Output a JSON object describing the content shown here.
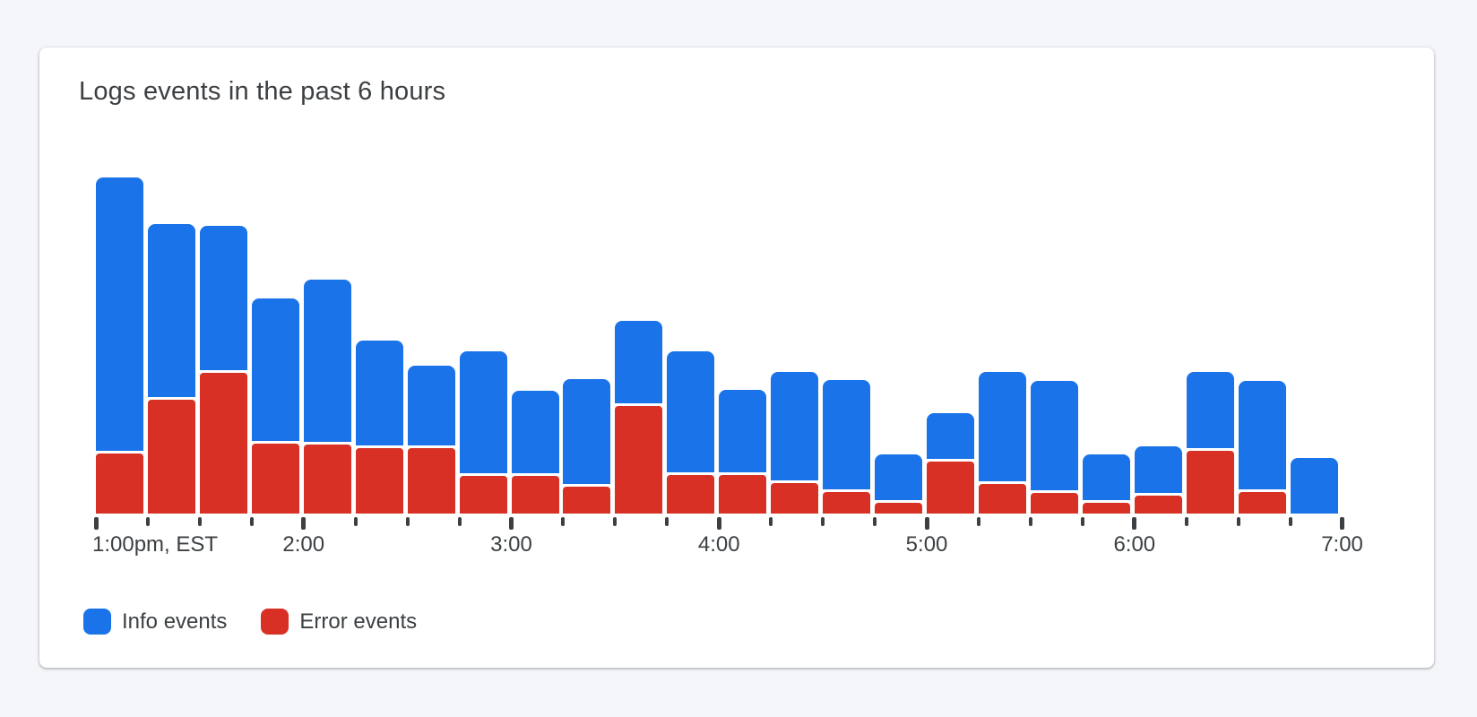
{
  "page": {
    "background_color": "#f5f6f9"
  },
  "card": {
    "title": "Logs events in the past 6 hours",
    "background_color": "#ffffff"
  },
  "chart_data": {
    "type": "bar",
    "stacked": true,
    "title": "Logs events in the past 6 hours",
    "x_interval_minutes": 15,
    "x_start": "1:00pm EST",
    "x_end": "7:00pm EST",
    "categories": [
      "1:00pm",
      "1:15",
      "1:30",
      "1:45",
      "2:00",
      "2:15",
      "2:30",
      "2:45",
      "3:00",
      "3:15",
      "3:30",
      "3:45",
      "4:00",
      "4:15",
      "4:30",
      "4:45",
      "5:00",
      "5:15",
      "5:30",
      "5:45",
      "6:00",
      "6:15",
      "6:30",
      "6:45"
    ],
    "series": [
      {
        "name": "Info events",
        "color": "#1a73e8",
        "values": [
          305,
          193,
          161,
          159,
          181,
          117,
          89,
          136,
          92,
          117,
          92,
          135,
          92,
          121,
          122,
          51,
          51,
          122,
          122,
          51,
          52,
          85,
          121,
          62
        ]
      },
      {
        "name": "Error events",
        "color": "#d93025",
        "values": [
          67,
          127,
          157,
          78,
          77,
          73,
          73,
          42,
          42,
          30,
          120,
          43,
          43,
          34,
          24,
          12,
          58,
          33,
          23,
          12,
          20,
          70,
          24,
          0
        ]
      }
    ],
    "hour_labels": [
      "1:00pm, EST",
      "2:00",
      "3:00",
      "4:00",
      "5:00",
      "6:00",
      "7:00"
    ],
    "ticks_per_hour": 4,
    "y_axis": "none shown (values in relative pixel units)",
    "ylim": [
      0,
      380
    ],
    "grid": false,
    "legend_position": "bottom-left"
  },
  "legend": {
    "items": [
      {
        "label": "Info events",
        "color": "#1a73e8"
      },
      {
        "label": "Error events",
        "color": "#d93025"
      }
    ]
  },
  "colors": {
    "info": "#1a73e8",
    "error": "#d93025",
    "text": "#3c4043",
    "tick": "#3c4043",
    "page_background": "#f5f6f9"
  }
}
